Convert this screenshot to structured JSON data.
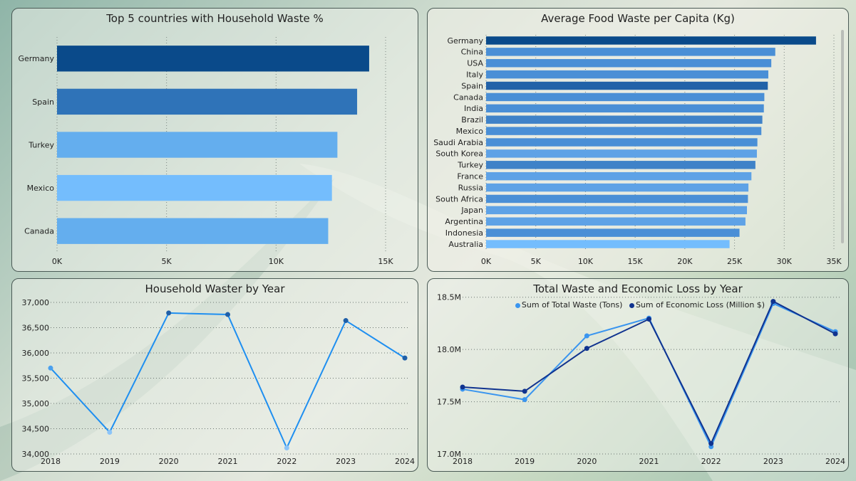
{
  "colors": {
    "dark_blue": "#0a4a8a",
    "mid_blue": "#2f73b8",
    "light_blue": "#64aeee",
    "sky_blue": "#74bdfd",
    "bar_blue": "#4a8fd6",
    "line_blue": "#1f8ff0",
    "navy": "#10338f"
  },
  "chart_data": [
    {
      "type": "bar",
      "orientation": "horizontal",
      "title": "Top 5 countries with Household Waste %",
      "categories": [
        "Germany",
        "Spain",
        "Turkey",
        "Mexico",
        "Canada"
      ],
      "values": [
        14250,
        13700,
        12800,
        12550,
        12380
      ],
      "bar_colors": [
        "#0a4a8a",
        "#2f73b8",
        "#64aeee",
        "#74bdfd",
        "#64aeee"
      ],
      "xlim": [
        0,
        15000
      ],
      "xticks": [
        0,
        5000,
        10000,
        15000
      ],
      "xtick_labels": [
        "0K",
        "5K",
        "10K",
        "15K"
      ],
      "grid": "vertical dotted"
    },
    {
      "type": "bar",
      "orientation": "horizontal",
      "title": "Average Food Waste per Capita (Kg)",
      "categories": [
        "Germany",
        "China",
        "USA",
        "Italy",
        "Spain",
        "Canada",
        "India",
        "Brazil",
        "Mexico",
        "Saudi Arabia",
        "South Korea",
        "Turkey",
        "France",
        "Russia",
        "South Africa",
        "Japan",
        "Argentina",
        "Indonesia",
        "Australia"
      ],
      "values": [
        33200,
        29100,
        28700,
        28400,
        28350,
        28000,
        27950,
        27800,
        27700,
        27300,
        27250,
        27100,
        26700,
        26400,
        26350,
        26250,
        26100,
        25500,
        24500
      ],
      "bar_colors": [
        "#0a4a8a",
        "#4a8fd6",
        "#4a8fd6",
        "#4a8fd6",
        "#2262a8",
        "#4a8fd6",
        "#4a8fd6",
        "#3f82c8",
        "#4a8fd6",
        "#4a8fd6",
        "#5ea2e6",
        "#3f82c8",
        "#5ea2e6",
        "#5ea2e6",
        "#4a8fd6",
        "#5ea2e6",
        "#5ea2e6",
        "#4a8fd6",
        "#74bdfd"
      ],
      "xlim": [
        0,
        35000
      ],
      "xticks": [
        0,
        5000,
        10000,
        15000,
        20000,
        25000,
        30000,
        35000
      ],
      "xtick_labels": [
        "0K",
        "5K",
        "10K",
        "15K",
        "20K",
        "25K",
        "30K",
        "35K"
      ],
      "grid": "vertical dotted"
    },
    {
      "type": "line",
      "title": "Household Waster by Year",
      "x": [
        "2018",
        "2019",
        "2020",
        "2021",
        "2022",
        "2023",
        "2024"
      ],
      "values": [
        35700,
        34430,
        36790,
        36760,
        34120,
        36640,
        35900
      ],
      "ylim": [
        34000,
        37000
      ],
      "yticks": [
        34000,
        34500,
        35000,
        35500,
        36000,
        36500,
        37000
      ],
      "ytick_labels": [
        "34,000",
        "34,500",
        "35,000",
        "35,500",
        "36,000",
        "36,500",
        "37,000"
      ],
      "point_colors": [
        "#4aa0ee",
        "#8cc4f8",
        "#1f5fa8",
        "#1f5fa8",
        "#8cc4f8",
        "#1f5fa8",
        "#1f5fa8"
      ],
      "line_color": "#1f8ff0",
      "grid": "horizontal dotted"
    },
    {
      "type": "line",
      "title": "Total Waste and Economic Loss by Year",
      "x": [
        "2018",
        "2019",
        "2020",
        "2021",
        "2022",
        "2023",
        "2024"
      ],
      "series": [
        {
          "name": "Sum of Total Waste (Tons)",
          "color": "#3a95ef",
          "values": [
            17620000,
            17520000,
            18130000,
            18300000,
            17070000,
            18440000,
            18170000
          ]
        },
        {
          "name": "Sum of Economic Loss (Million $)",
          "color": "#10338f",
          "values": [
            17640000,
            17600000,
            18010000,
            18290000,
            17100000,
            18460000,
            18150000
          ]
        }
      ],
      "ylim": [
        17000000,
        18600000
      ],
      "yticks": [
        17000000,
        17500000,
        18000000,
        18500000
      ],
      "ytick_labels": [
        "17.0M",
        "17.5M",
        "18.0M",
        "18.5M"
      ],
      "grid": "horizontal dotted",
      "legend": "top"
    }
  ]
}
